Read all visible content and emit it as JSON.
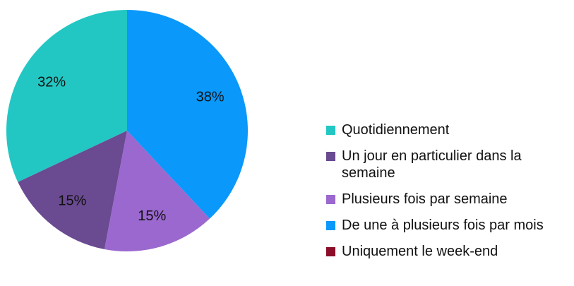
{
  "chart_data": {
    "type": "pie",
    "categories": [
      "Quotidiennement",
      "Un jour en particulier dans la semaine",
      "Plusieurs fois par semaine",
      "De une à plusieurs fois par mois",
      "Uniquement le week-end"
    ],
    "values": [
      32,
      15,
      15,
      38,
      0
    ],
    "value_labels": [
      "32%",
      "15%",
      "15%",
      "38%",
      null
    ],
    "colors": [
      "#22c7c3",
      "#6a4a90",
      "#9a68cf",
      "#0a98fa",
      "#8b0d27"
    ],
    "legend": "right"
  }
}
